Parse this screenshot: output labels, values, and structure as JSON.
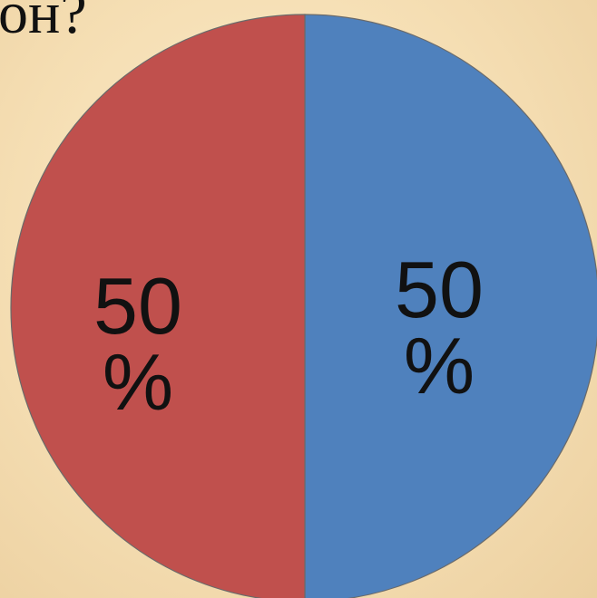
{
  "title": "он?",
  "chart_data": {
    "type": "pie",
    "title": "он?",
    "slices": [
      {
        "value": 50,
        "label_value": "50",
        "label_unit": "%",
        "color": "#4f81bd"
      },
      {
        "value": 50,
        "label_value": "50",
        "label_unit": "%",
        "color": "#c0504d"
      }
    ]
  }
}
